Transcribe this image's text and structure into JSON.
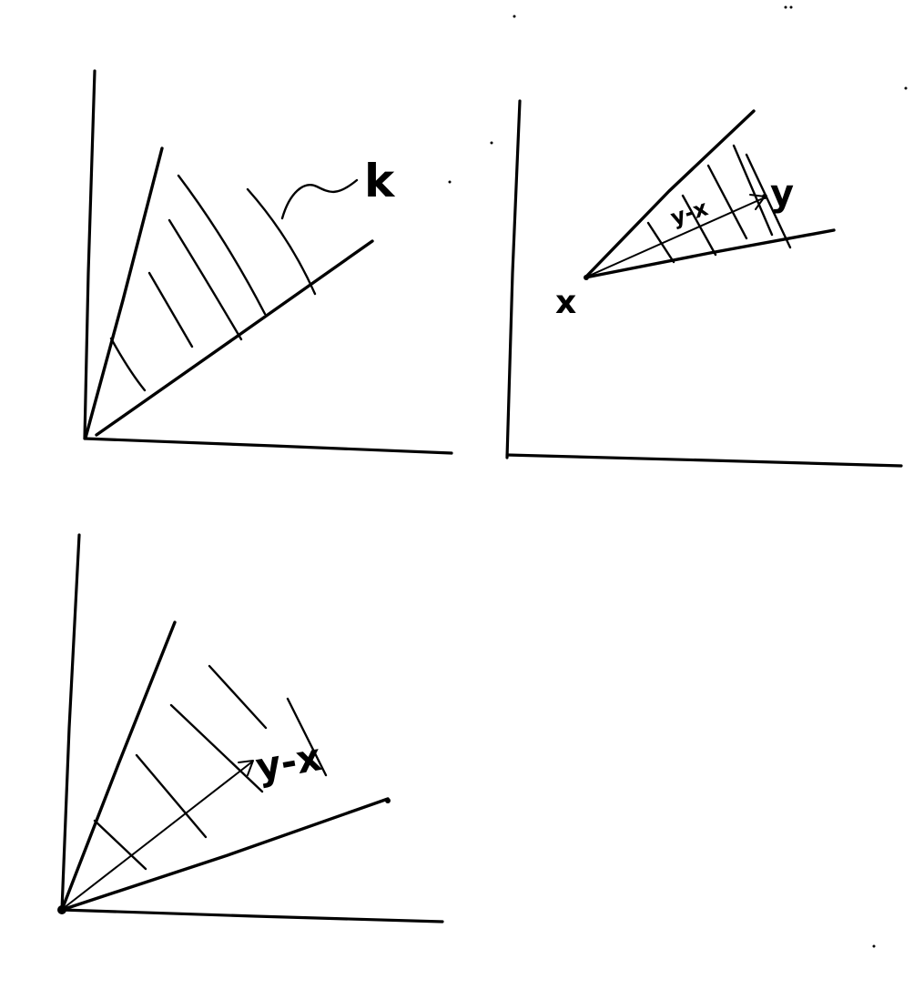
{
  "panel_top_left": {
    "cone_label": "k"
  },
  "panel_top_right": {
    "point_x_label": "x",
    "point_y_label": "y",
    "vector_label": "y-x"
  },
  "panel_bottom_left": {
    "vector_label": "y-x"
  }
}
